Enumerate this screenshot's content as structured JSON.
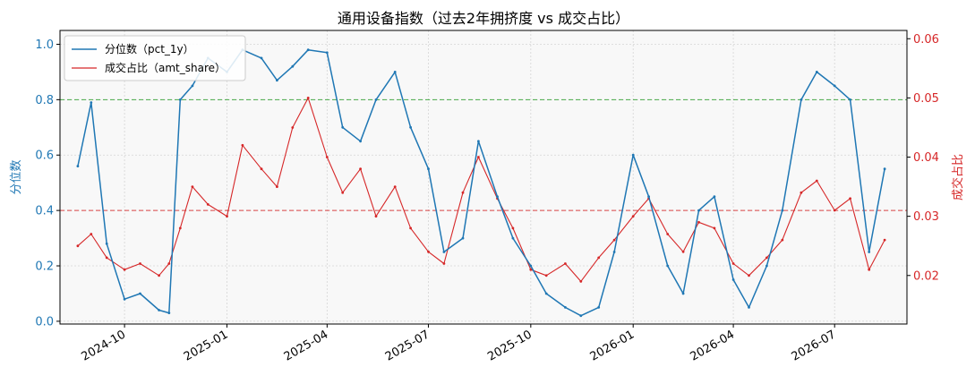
{
  "chart_data": {
    "type": "line",
    "title": "通用设备指数（过去2年拥挤度 vs 成交占比）",
    "xlabel": "",
    "x_tick_labels": [
      "2024-10",
      "2025-01",
      "2025-04",
      "2025-07",
      "2025-10",
      "2026-01",
      "2026-04",
      "2026-07"
    ],
    "x_ticks": [
      "2024-10-01",
      "2025-01-01",
      "2025-04-01",
      "2025-07-01",
      "2025-10-01",
      "2026-01-01",
      "2026-04-01",
      "2026-07-01"
    ],
    "xlim": [
      "2024-08-04",
      "2026-09-04"
    ],
    "y_left": {
      "label": "分位数",
      "lim": [
        -0.01,
        1.05
      ],
      "ticks": [
        0.0,
        0.2,
        0.4,
        0.6,
        0.8,
        1.0
      ],
      "tick_labels": [
        "0.0",
        "0.2",
        "0.4",
        "0.6",
        "0.8",
        "1.0"
      ],
      "color": "#1f77b4"
    },
    "y_right": {
      "label": "成交占比",
      "lim": [
        0.0118,
        0.0614
      ],
      "ticks": [
        0.02,
        0.03,
        0.04,
        0.05,
        0.06
      ],
      "tick_labels": [
        "0.02",
        "0.03",
        "0.04",
        "0.05",
        "0.06"
      ],
      "color": "#d62728"
    },
    "grid": true,
    "legend": "top-left",
    "series": [
      {
        "name": "分位数（pct_1y）",
        "axis": "left",
        "color": "#1f77b4",
        "x": [
          "2024-08-20",
          "2024-09-01",
          "2024-09-15",
          "2024-10-01",
          "2024-10-15",
          "2024-11-01",
          "2024-11-10",
          "2024-11-20",
          "2024-12-01",
          "2024-12-15",
          "2025-01-01",
          "2025-01-15",
          "2025-02-01",
          "2025-02-15",
          "2025-03-01",
          "2025-03-15",
          "2025-04-01",
          "2025-04-15",
          "2025-05-01",
          "2025-05-15",
          "2025-06-01",
          "2025-06-15",
          "2025-07-01",
          "2025-07-15",
          "2025-08-01",
          "2025-08-15",
          "2025-09-01",
          "2025-09-15",
          "2025-10-01",
          "2025-10-15",
          "2025-11-01",
          "2025-11-15",
          "2025-12-01",
          "2025-12-15",
          "2026-01-01",
          "2026-01-15",
          "2026-02-01",
          "2026-02-15",
          "2026-03-01",
          "2026-03-15",
          "2026-04-01",
          "2026-04-15",
          "2026-05-01",
          "2026-05-15",
          "2026-06-01",
          "2026-06-15",
          "2026-07-01",
          "2026-07-15",
          "2026-08-01",
          "2026-08-15"
        ],
        "values": [
          0.56,
          0.79,
          0.28,
          0.08,
          0.1,
          0.04,
          0.03,
          0.8,
          0.85,
          0.95,
          0.9,
          0.98,
          0.95,
          0.87,
          0.92,
          0.98,
          0.97,
          0.7,
          0.65,
          0.8,
          0.9,
          0.7,
          0.55,
          0.25,
          0.3,
          0.65,
          0.45,
          0.3,
          0.2,
          0.1,
          0.05,
          0.02,
          0.05,
          0.25,
          0.6,
          0.45,
          0.2,
          0.1,
          0.4,
          0.45,
          0.15,
          0.05,
          0.2,
          0.4,
          0.8,
          0.9,
          0.85,
          0.8,
          0.25,
          0.55
        ]
      },
      {
        "name": "成交占比（amt_share）",
        "axis": "right",
        "color": "#d62728",
        "x": [
          "2024-08-20",
          "2024-09-01",
          "2024-09-15",
          "2024-10-01",
          "2024-10-15",
          "2024-11-01",
          "2024-11-10",
          "2024-11-20",
          "2024-12-01",
          "2024-12-15",
          "2025-01-01",
          "2025-01-15",
          "2025-02-01",
          "2025-02-15",
          "2025-03-01",
          "2025-03-15",
          "2025-04-01",
          "2025-04-15",
          "2025-05-01",
          "2025-05-15",
          "2025-06-01",
          "2025-06-15",
          "2025-07-01",
          "2025-07-15",
          "2025-08-01",
          "2025-08-15",
          "2025-09-01",
          "2025-09-15",
          "2025-10-01",
          "2025-10-15",
          "2025-11-01",
          "2025-11-15",
          "2025-12-01",
          "2025-12-15",
          "2026-01-01",
          "2026-01-15",
          "2026-02-01",
          "2026-02-15",
          "2026-03-01",
          "2026-03-15",
          "2026-04-01",
          "2026-04-15",
          "2026-05-01",
          "2026-05-15",
          "2026-06-01",
          "2026-06-15",
          "2026-07-01",
          "2026-07-15",
          "2026-08-01",
          "2026-08-15"
        ],
        "values": [
          0.025,
          0.027,
          0.023,
          0.021,
          0.022,
          0.02,
          0.022,
          0.028,
          0.035,
          0.032,
          0.03,
          0.042,
          0.038,
          0.035,
          0.045,
          0.05,
          0.04,
          0.034,
          0.038,
          0.03,
          0.035,
          0.028,
          0.024,
          0.022,
          0.034,
          0.04,
          0.033,
          0.028,
          0.021,
          0.02,
          0.022,
          0.019,
          0.023,
          0.026,
          0.03,
          0.033,
          0.027,
          0.024,
          0.029,
          0.028,
          0.022,
          0.02,
          0.023,
          0.026,
          0.034,
          0.036,
          0.031,
          0.033,
          0.021,
          0.026
        ]
      }
    ],
    "reference_lines": [
      {
        "axis": "left",
        "value": 0.8,
        "color": "#2ca02c"
      },
      {
        "axis": "left",
        "value": 0.4,
        "color": "#d62728"
      }
    ]
  }
}
